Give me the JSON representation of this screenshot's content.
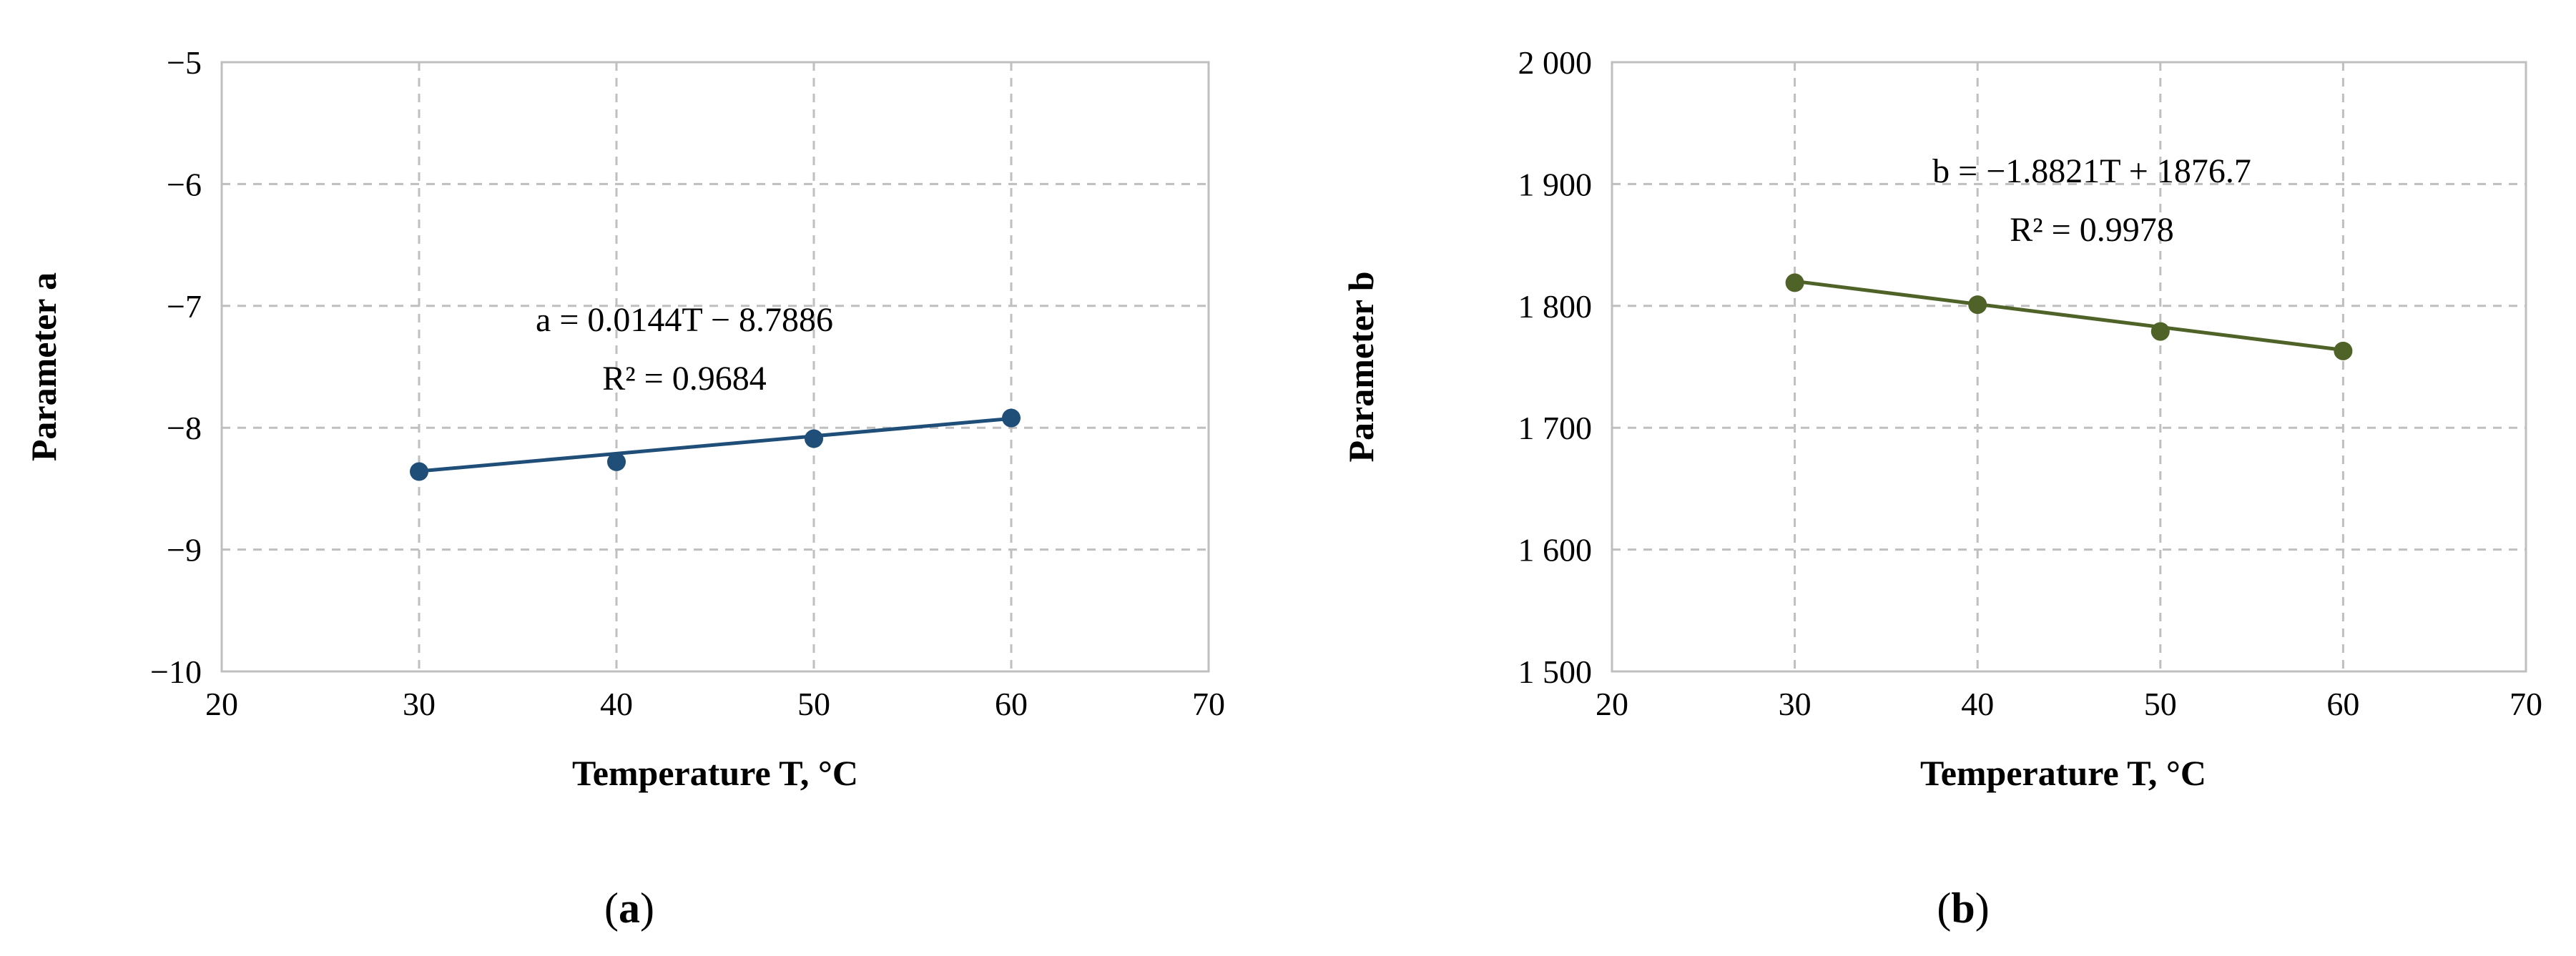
{
  "chart_data": [
    {
      "panel_label": "(a)",
      "type": "scatter",
      "xlabel": "Temperature T, °C",
      "ylabel": "Parameter a",
      "xlim": [
        20,
        70
      ],
      "ylim": [
        -10,
        -5
      ],
      "xticks": [
        20,
        30,
        40,
        50,
        60,
        70
      ],
      "yticks": [
        -10,
        -9,
        -8,
        -7,
        -6,
        -5
      ],
      "x_tick_labels": [
        "20",
        "30",
        "40",
        "50",
        "60",
        "70"
      ],
      "y_tick_labels": [
        "−10",
        "−9",
        "−8",
        "−7",
        "−6",
        "−5"
      ],
      "grid": true,
      "color": "#1F4E79",
      "series": [
        {
          "x": [
            30,
            40,
            50,
            60
          ],
          "y": [
            -8.36,
            -8.28,
            -8.09,
            -7.92
          ]
        }
      ],
      "trendline": {
        "type": "linear",
        "slope": 0.0144,
        "intercept": -8.7886,
        "x_range": [
          30,
          60
        ]
      },
      "annotations": [
        "a = 0.0144T − 8.7886",
        "R² = 0.9684"
      ]
    },
    {
      "panel_label": "(b)",
      "type": "scatter",
      "xlabel": "Temperature T, °C",
      "ylabel": "Parameter b",
      "xlim": [
        20,
        70
      ],
      "ylim": [
        1500,
        2000
      ],
      "xticks": [
        20,
        30,
        40,
        50,
        60,
        70
      ],
      "yticks": [
        1500,
        1600,
        1700,
        1800,
        1900,
        2000
      ],
      "x_tick_labels": [
        "20",
        "30",
        "40",
        "50",
        "60",
        "70"
      ],
      "y_tick_labels": [
        "1 500",
        "1 600",
        "1 700",
        "1 800",
        "1 900",
        "2 000"
      ],
      "grid": true,
      "color": "#4F6228",
      "series": [
        {
          "x": [
            30,
            40,
            50,
            60
          ],
          "y": [
            1819,
            1801,
            1779,
            1763
          ]
        }
      ],
      "trendline": {
        "type": "linear",
        "slope": -1.8821,
        "intercept": 1876.7,
        "x_range": [
          30,
          60
        ]
      },
      "annotations": [
        "b = −1.8821T + 1876.7",
        "R² = 0.9978"
      ]
    }
  ]
}
